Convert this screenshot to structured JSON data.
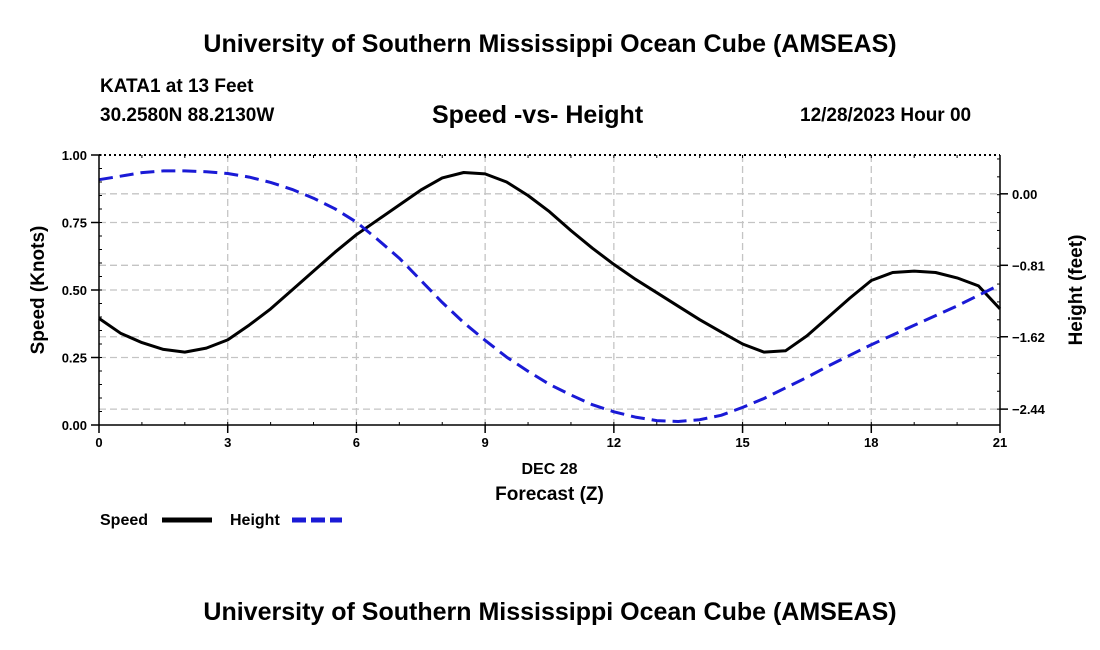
{
  "header": {
    "title": "University of Southern Mississippi Ocean Cube (AMSEAS)",
    "station": "KATA1 at 13 Feet",
    "coordinates": "30.2580N  88.2130W",
    "plot_title": "Speed -vs- Height",
    "date_hour": "12/28/2023 Hour 00"
  },
  "footer": {
    "title": "University of Southern Mississippi Ocean Cube (AMSEAS)"
  },
  "chart_data": {
    "type": "line",
    "title": "Speed -vs- Height",
    "xlabel": "Forecast (Z)",
    "xlabel_date": "DEC 28",
    "ylabel": "Speed (Knots)",
    "ylabel_right": "Height (feet)",
    "xlim": [
      0,
      21
    ],
    "ylim": [
      0,
      1
    ],
    "y2lim": [
      -2.62,
      0.44
    ],
    "grid": true,
    "x_ticks": [
      0,
      3,
      6,
      9,
      12,
      15,
      18,
      21
    ],
    "x_tick_labels": [
      "0",
      "3",
      "6",
      "9",
      "12",
      "15",
      "18",
      "21"
    ],
    "y_ticks": [
      0,
      0.25,
      0.5,
      0.75,
      1.0
    ],
    "y_tick_labels": [
      "0.00",
      "0.25",
      "0.50",
      "0.75",
      "1.00"
    ],
    "y2_ticks": [
      0,
      -0.81,
      -1.62,
      -2.44
    ],
    "y2_tick_labels": [
      "0.00",
      "−0.81",
      "−1.62",
      "−2.44"
    ],
    "legend_placement": "bottom-left",
    "series": [
      {
        "name": "Speed",
        "axis": "left",
        "color": "#000000",
        "dash": "solid",
        "x": [
          0,
          0.5,
          1,
          1.5,
          2,
          2.5,
          3,
          3.5,
          4,
          4.5,
          5,
          5.5,
          6,
          6.5,
          7,
          7.5,
          8,
          8.5,
          9,
          9.5,
          10,
          10.5,
          11,
          11.5,
          12,
          12.5,
          13,
          13.5,
          14,
          14.5,
          15,
          15.5,
          16,
          16.5,
          17,
          17.5,
          18,
          18.5,
          19,
          19.5,
          20,
          20.5,
          21
        ],
        "values": [
          0.395,
          0.34,
          0.305,
          0.28,
          0.27,
          0.285,
          0.315,
          0.37,
          0.43,
          0.5,
          0.57,
          0.64,
          0.705,
          0.76,
          0.815,
          0.87,
          0.915,
          0.935,
          0.93,
          0.9,
          0.85,
          0.79,
          0.72,
          0.655,
          0.595,
          0.54,
          0.49,
          0.44,
          0.39,
          0.345,
          0.3,
          0.27,
          0.275,
          0.33,
          0.4,
          0.47,
          0.535,
          0.565,
          0.57,
          0.565,
          0.545,
          0.515,
          0.43
        ]
      },
      {
        "name": "Height",
        "axis": "right",
        "color": "#1a1ad6",
        "dash": "dashed",
        "x": [
          0,
          0.5,
          1,
          1.5,
          2,
          2.5,
          3,
          3.5,
          4,
          4.5,
          5,
          5.5,
          6,
          6.5,
          7,
          7.5,
          8,
          8.5,
          9,
          9.5,
          10,
          10.5,
          11,
          11.5,
          12,
          12.5,
          13,
          13.5,
          14,
          14.5,
          15,
          15.5,
          16,
          16.5,
          17,
          17.5,
          18,
          18.5,
          19,
          19.5,
          20,
          20.5,
          21
        ],
        "values": [
          0.16,
          0.2,
          0.24,
          0.26,
          0.26,
          0.25,
          0.23,
          0.19,
          0.13,
          0.05,
          -0.05,
          -0.17,
          -0.32,
          -0.52,
          -0.73,
          -0.98,
          -1.23,
          -1.46,
          -1.66,
          -1.85,
          -2.01,
          -2.16,
          -2.28,
          -2.39,
          -2.47,
          -2.53,
          -2.57,
          -2.58,
          -2.56,
          -2.51,
          -2.42,
          -2.32,
          -2.2,
          -2.08,
          -1.95,
          -1.83,
          -1.71,
          -1.6,
          -1.49,
          -1.38,
          -1.27,
          -1.15,
          -1.03
        ]
      }
    ]
  },
  "legend": [
    {
      "label": "Speed",
      "color": "#000000",
      "dash": "solid"
    },
    {
      "label": "Height",
      "color": "#1a1ad6",
      "dash": "dashed"
    }
  ]
}
